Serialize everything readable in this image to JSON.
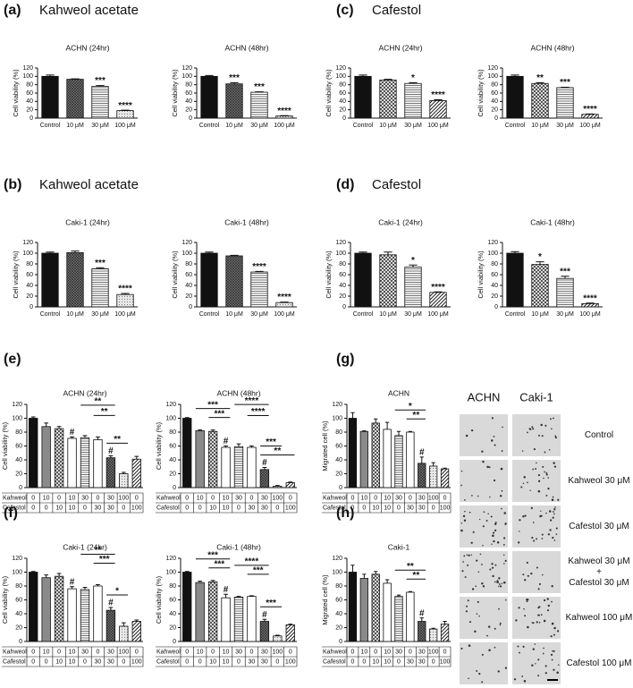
{
  "panels": [
    {
      "label": "(a)",
      "heading": "Kahweol acetate"
    },
    {
      "label": "(c)",
      "heading": "Cafestol"
    },
    {
      "label": "(b)",
      "heading": "Kahweol acetate"
    },
    {
      "label": "(d)",
      "heading": "Cafestol"
    },
    {
      "label": "(e)"
    },
    {
      "label": "(g)"
    },
    {
      "label": "(f)"
    },
    {
      "label": "(h)"
    }
  ],
  "treatments": [
    {
      "name": "Kahweol",
      "values": [
        0,
        10,
        0,
        10,
        30,
        0,
        30,
        100,
        0
      ]
    },
    {
      "name": "Cafestol",
      "values": [
        0,
        0,
        10,
        10,
        0,
        30,
        30,
        0,
        100
      ]
    }
  ],
  "chart_data": [
    {
      "type": "bar",
      "title": "ACHN (24hr)",
      "ylabel": "Cell viability (%)",
      "categories": [
        "Control",
        "10 μM",
        "30 μM",
        "100 μM"
      ],
      "values": [
        100,
        93,
        76,
        18
      ],
      "errors": [
        3,
        1,
        2,
        1
      ],
      "annotations": [
        null,
        null,
        "***",
        "****"
      ],
      "ylim": [
        0,
        120
      ],
      "yticks": [
        0,
        20,
        40,
        60,
        80,
        100,
        120
      ]
    },
    {
      "type": "bar",
      "title": "ACHN (48hr)",
      "ylabel": "Cell viability (%)",
      "categories": [
        "Control",
        "10 μM",
        "30 μM",
        "100 μM"
      ],
      "values": [
        100,
        82,
        62,
        5
      ],
      "errors": [
        2,
        3,
        1,
        1
      ],
      "annotations": [
        null,
        "***",
        "***",
        "****"
      ],
      "ylim": [
        0,
        120
      ],
      "yticks": [
        0,
        20,
        40,
        60,
        80,
        100,
        120
      ]
    },
    {
      "type": "bar",
      "title": "ACHN (24hr)",
      "ylabel": "Cell viability (%)",
      "categories": [
        "Control",
        "10 μM",
        "30 μM",
        "100 μM"
      ],
      "values": [
        100,
        91,
        83,
        42
      ],
      "errors": [
        3,
        2,
        2,
        2
      ],
      "annotations": [
        null,
        null,
        "*",
        "****"
      ],
      "ylim": [
        0,
        120
      ],
      "yticks": [
        0,
        20,
        40,
        60,
        80,
        100,
        120
      ]
    },
    {
      "type": "bar",
      "title": "ACHN (48hr)",
      "ylabel": "Cell viability (%)",
      "categories": [
        "Control",
        "10 μM",
        "30 μM",
        "100 μM"
      ],
      "values": [
        100,
        83,
        73,
        9
      ],
      "errors": [
        3,
        2,
        1,
        1
      ],
      "annotations": [
        null,
        "**",
        "***",
        "****"
      ],
      "ylim": [
        0,
        120
      ],
      "yticks": [
        0,
        20,
        40,
        60,
        80,
        100,
        120
      ]
    },
    {
      "type": "bar",
      "title": "Caki-1 (24hr)",
      "ylabel": "Cell viability (%)",
      "categories": [
        "Control",
        "10 μM",
        "30 μM",
        "100 μM"
      ],
      "values": [
        100,
        101,
        71,
        23
      ],
      "errors": [
        2,
        3,
        2,
        2
      ],
      "annotations": [
        null,
        null,
        "***",
        "****"
      ],
      "ylim": [
        0,
        120
      ],
      "yticks": [
        0,
        20,
        40,
        60,
        80,
        100,
        120
      ]
    },
    {
      "type": "bar",
      "title": "Caki-1 (48hr)",
      "ylabel": "Cell viability (%)",
      "categories": [
        "Control",
        "10 μM",
        "30 μM",
        "100 μM"
      ],
      "values": [
        100,
        95,
        65,
        8
      ],
      "errors": [
        2,
        1,
        1,
        1
      ],
      "annotations": [
        null,
        null,
        "****",
        "****"
      ],
      "ylim": [
        0,
        120
      ],
      "yticks": [
        0,
        20,
        40,
        60,
        80,
        100,
        120
      ]
    },
    {
      "type": "bar",
      "title": "Caki-1 (24hr)",
      "ylabel": "Cell viability (%)",
      "categories": [
        "Control",
        "10 μM",
        "30 μM",
        "100 μM"
      ],
      "values": [
        100,
        97,
        74,
        27
      ],
      "errors": [
        2,
        5,
        4,
        1
      ],
      "annotations": [
        null,
        null,
        "*",
        "****"
      ],
      "ylim": [
        0,
        120
      ],
      "yticks": [
        0,
        20,
        40,
        60,
        80,
        100,
        120
      ]
    },
    {
      "type": "bar",
      "title": "Caki-1 (48hr)",
      "ylabel": "Cell viability (%)",
      "categories": [
        "Control",
        "10 μM",
        "30 μM",
        "100 μM"
      ],
      "values": [
        100,
        79,
        53,
        6
      ],
      "errors": [
        3,
        5,
        4,
        1
      ],
      "annotations": [
        null,
        "*",
        "***",
        "****"
      ],
      "ylim": [
        0,
        120
      ],
      "yticks": [
        0,
        20,
        40,
        60,
        80,
        100,
        120
      ]
    },
    {
      "type": "bar",
      "title": "ACHN (24hr)",
      "ylabel": "Cell viability (%)",
      "values": [
        100,
        88,
        85,
        71,
        72,
        69,
        43,
        20,
        41
      ],
      "errors": [
        2,
        5,
        3,
        2,
        3,
        4,
        3,
        2,
        4
      ],
      "annotations": [
        null,
        null,
        null,
        "#",
        null,
        null,
        "#",
        null,
        null
      ],
      "comparisons": [
        {
          "from": 4,
          "to": 6,
          "label": "**"
        },
        {
          "from": 5,
          "to": 6,
          "label": "**"
        },
        {
          "from": 6,
          "to": 7,
          "label": "**"
        }
      ],
      "ylim": [
        0,
        120
      ],
      "yticks": [
        0,
        20,
        40,
        60,
        80,
        100,
        120
      ]
    },
    {
      "type": "bar",
      "title": "ACHN (48hr)",
      "ylabel": "Cell viability (%)",
      "values": [
        100,
        82,
        81,
        58,
        59,
        58,
        26,
        2,
        7
      ],
      "errors": [
        1,
        1,
        2,
        2,
        4,
        2,
        3,
        1,
        1
      ],
      "annotations": [
        null,
        null,
        null,
        "#",
        null,
        null,
        "#",
        null,
        null
      ],
      "comparisons": [
        {
          "from": 1,
          "to": 3,
          "label": "***"
        },
        {
          "from": 2,
          "to": 3,
          "label": "***"
        },
        {
          "from": 4,
          "to": 6,
          "label": "****"
        },
        {
          "from": 5,
          "to": 6,
          "label": "****"
        },
        {
          "from": 6,
          "to": 7,
          "label": "***"
        },
        {
          "from": 6,
          "to": 8,
          "label": "**"
        }
      ],
      "ylim": [
        0,
        120
      ],
      "yticks": [
        0,
        20,
        40,
        60,
        80,
        100,
        120
      ]
    },
    {
      "type": "bar",
      "title": "ACHN",
      "ylabel": "Migrated cell (%)",
      "values": [
        100,
        81,
        93,
        84,
        75,
        80,
        35,
        31,
        27
      ],
      "errors": [
        8,
        1,
        6,
        10,
        6,
        1,
        9,
        5,
        1
      ],
      "annotations": [
        null,
        null,
        null,
        null,
        null,
        null,
        "#",
        null,
        null
      ],
      "comparisons": [
        {
          "from": 4,
          "to": 6,
          "label": "*"
        },
        {
          "from": 5,
          "to": 6,
          "label": "**"
        }
      ],
      "ylim": [
        0,
        120
      ],
      "yticks": [
        0,
        20,
        40,
        60,
        80,
        100,
        120
      ]
    },
    {
      "type": "bar",
      "title": "Caki-1 (24hr)",
      "ylabel": "Cell viability (%)",
      "values": [
        100,
        92,
        94,
        76,
        75,
        80,
        45,
        22,
        29
      ],
      "errors": [
        1,
        4,
        4,
        3,
        3,
        2,
        4,
        5,
        2
      ],
      "annotations": [
        null,
        null,
        null,
        "#",
        null,
        null,
        "#",
        null,
        null
      ],
      "comparisons": [
        {
          "from": 4,
          "to": 6,
          "label": "**"
        },
        {
          "from": 5,
          "to": 6,
          "label": "***"
        },
        {
          "from": 6,
          "to": 7,
          "label": "*"
        }
      ],
      "ylim": [
        0,
        120
      ],
      "yticks": [
        0,
        20,
        40,
        60,
        80,
        100,
        120
      ]
    },
    {
      "type": "bar",
      "title": "Caki-1 (48hr)",
      "ylabel": "Cell viability (%)",
      "values": [
        100,
        85,
        86,
        63,
        64,
        65,
        29,
        8,
        24
      ],
      "errors": [
        1,
        2,
        2,
        5,
        1,
        1,
        3,
        1,
        1
      ],
      "annotations": [
        null,
        null,
        null,
        "#",
        null,
        null,
        "#",
        null,
        null
      ],
      "comparisons": [
        {
          "from": 1,
          "to": 3,
          "label": "***"
        },
        {
          "from": 2,
          "to": 3,
          "label": "***"
        },
        {
          "from": 4,
          "to": 6,
          "label": "****"
        },
        {
          "from": 5,
          "to": 6,
          "label": "***"
        },
        {
          "from": 6,
          "to": 7,
          "label": "***"
        }
      ],
      "ylim": [
        0,
        120
      ],
      "yticks": [
        0,
        20,
        40,
        60,
        80,
        100,
        120
      ]
    },
    {
      "type": "bar",
      "title": "Caki-1",
      "ylabel": "Migrated cell (%)",
      "values": [
        100,
        91,
        97,
        84,
        65,
        71,
        29,
        18,
        25
      ],
      "errors": [
        10,
        6,
        4,
        5,
        2,
        1,
        5,
        1,
        4
      ],
      "annotations": [
        null,
        null,
        null,
        null,
        null,
        null,
        "#",
        null,
        null
      ],
      "comparisons": [
        {
          "from": 4,
          "to": 6,
          "label": "**"
        },
        {
          "from": 5,
          "to": 6,
          "label": "**"
        }
      ],
      "ylim": [
        0,
        120
      ],
      "yticks": [
        0,
        20,
        40,
        60,
        80,
        100,
        120
      ]
    }
  ],
  "micrograph": {
    "columns": [
      "ACHN",
      "Caki-1"
    ],
    "rows": [
      [
        "Control"
      ],
      [
        "Kahweol 30 μM"
      ],
      [
        "Cafestol 30 μM"
      ],
      [
        "Kahweol 30 μM",
        "+",
        "Cafestol 30 μM"
      ],
      [
        "Kahweol 100 μM"
      ],
      [
        "Cafestol 100 μM"
      ]
    ]
  }
}
